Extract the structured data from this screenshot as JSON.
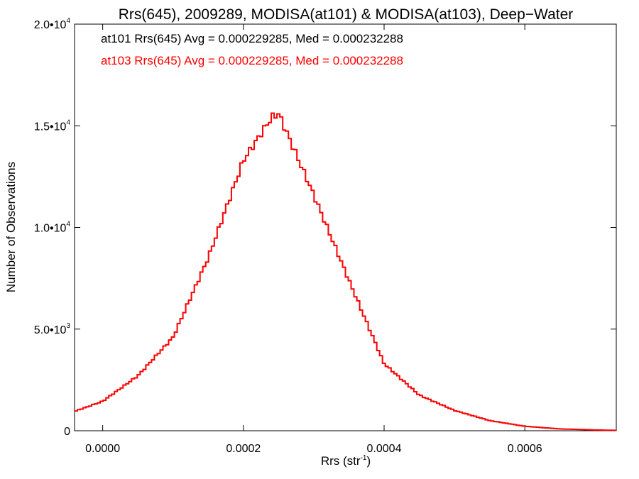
{
  "chart_data": {
    "type": "line",
    "title": "Rrs(645), 2009289, MODISA(at101) & MODISA(at103), Deep−Water",
    "xlabel_main": "Rrs (str",
    "xlabel_sup": "-1",
    "xlabel_tail": ")",
    "ylabel": "Number of Observations",
    "xlim": [
      -4e-05,
      0.00073
    ],
    "ylim": [
      0,
      20000
    ],
    "x_ticks": [
      {
        "value": 0.0,
        "label": "0.0000"
      },
      {
        "value": 0.0002,
        "label": "0.0002"
      },
      {
        "value": 0.0004,
        "label": "0.0004"
      },
      {
        "value": 0.0006,
        "label": "0.0006"
      }
    ],
    "y_ticks": [
      {
        "value": 0,
        "mant": "0",
        "exp": ""
      },
      {
        "value": 5000,
        "mant": "5.0•10",
        "exp": "3"
      },
      {
        "value": 10000,
        "mant": "1.0•10",
        "exp": "4"
      },
      {
        "value": 15000,
        "mant": "1.5•10",
        "exp": "4"
      },
      {
        "value": 20000,
        "mant": "2.0•10",
        "exp": "4"
      }
    ],
    "annotations": [
      {
        "text": "at101 Rrs(645) Avg = 0.000229285, Med = 0.000232288",
        "color": "#000000"
      },
      {
        "text": "at103 Rrs(645) Avg = 0.000229285, Med = 0.000232288",
        "color": "#ff0000"
      }
    ],
    "series": [
      {
        "name": "at101",
        "color": "#000000"
      },
      {
        "name": "at103",
        "color": "#ff0000"
      }
    ],
    "x": [
      -4e-05,
      0.0,
      5e-05,
      0.0001,
      0.00015,
      0.0002,
      0.00024,
      0.00025,
      0.0003,
      0.00035,
      0.0004,
      0.00045,
      0.0005,
      0.00055,
      0.0006,
      0.00065,
      0.0007,
      0.00073
    ],
    "y": [
      950,
      1450,
      2700,
      4600,
      8500,
      13300,
      15400,
      15600,
      11600,
      7400,
      3300,
      1750,
      1000,
      500,
      220,
      90,
      40,
      20
    ]
  }
}
